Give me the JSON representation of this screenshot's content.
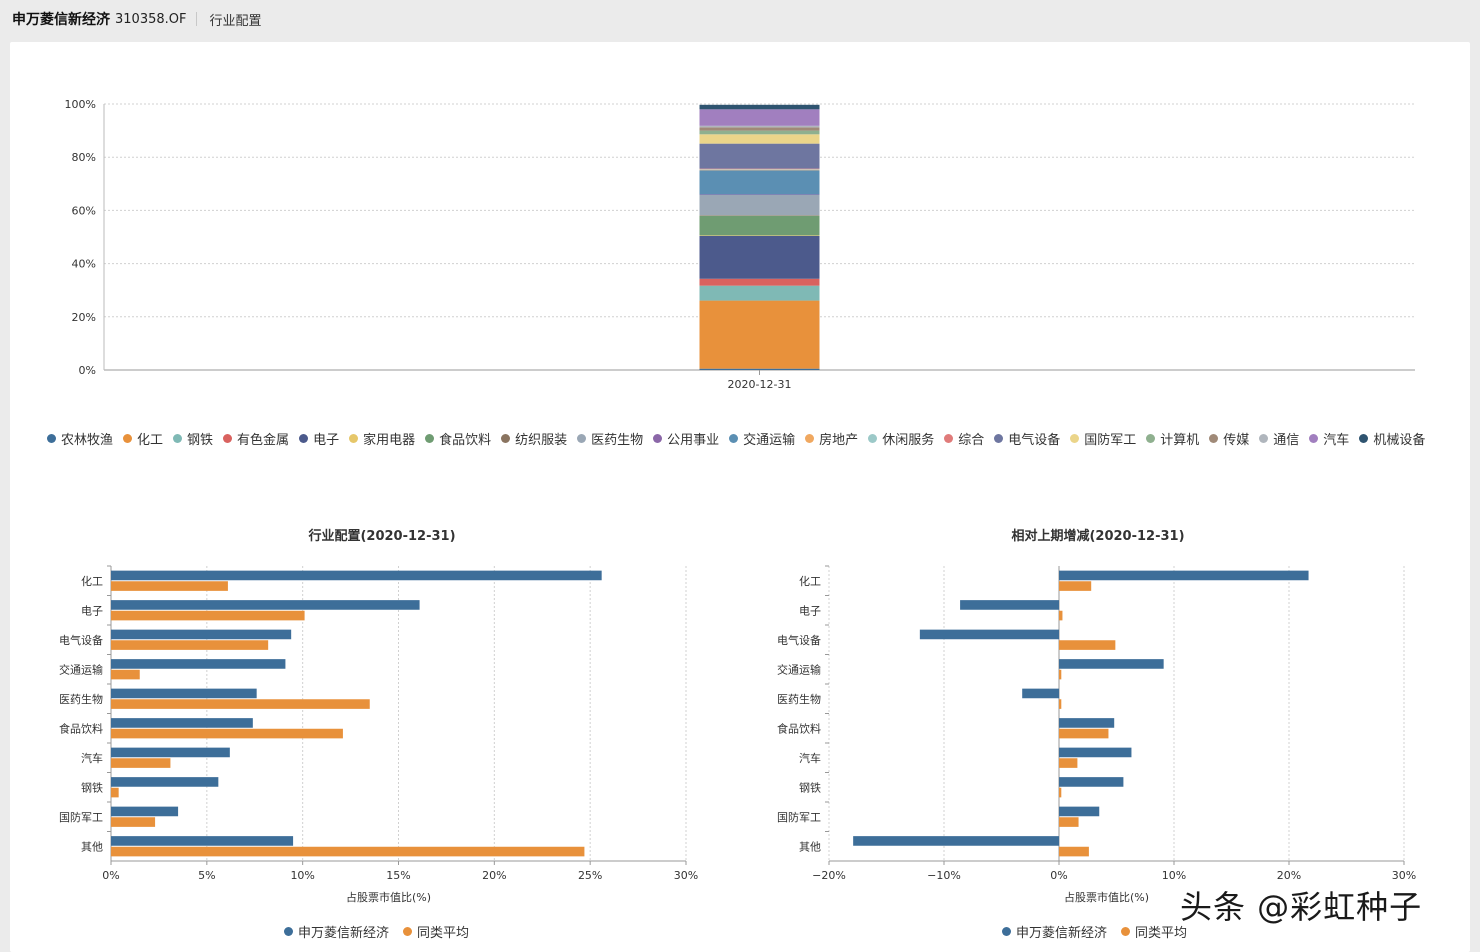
{
  "header": {
    "fund_name": "申万菱信新经济",
    "fund_code": "310358.OF",
    "page_title": "行业配置"
  },
  "colors": {
    "blue": "#3d6e99",
    "orange": "#e8913b"
  },
  "chart_data": [
    {
      "type": "bar",
      "stacked": true,
      "title": "",
      "categories": [
        "2020-12-31"
      ],
      "y_ticks": [
        "0%",
        "20%",
        "40%",
        "60%",
        "80%",
        "100%"
      ],
      "ylim": [
        0,
        100
      ],
      "series": [
        {
          "name": "农林牧渔",
          "color": "#3d6e99",
          "values": [
            0.5
          ]
        },
        {
          "name": "化工",
          "color": "#e8913b",
          "values": [
            25.6
          ]
        },
        {
          "name": "钢铁",
          "color": "#7fb9b5",
          "values": [
            5.6
          ]
        },
        {
          "name": "有色金属",
          "color": "#d9625f",
          "values": [
            2.6
          ]
        },
        {
          "name": "电子",
          "color": "#4c5a8c",
          "values": [
            16.1
          ]
        },
        {
          "name": "家用电器",
          "color": "#e6c76a",
          "values": [
            0.2
          ]
        },
        {
          "name": "食品饮料",
          "color": "#6f9c72",
          "values": [
            7.4
          ]
        },
        {
          "name": "纺织服装",
          "color": "#8a7460",
          "values": [
            0.2
          ]
        },
        {
          "name": "医药生物",
          "color": "#9aa7b5",
          "values": [
            7.6
          ]
        },
        {
          "name": "公用事业",
          "color": "#8b67a8",
          "values": [
            0.2
          ]
        },
        {
          "name": "交通运输",
          "color": "#5b8fb3",
          "values": [
            9.1
          ]
        },
        {
          "name": "房地产",
          "color": "#f0a860",
          "values": [
            0.2
          ]
        },
        {
          "name": "休闲服务",
          "color": "#9cc9c8",
          "values": [
            0.2
          ]
        },
        {
          "name": "综合",
          "color": "#e07b7a",
          "values": [
            0.2
          ]
        },
        {
          "name": "电气设备",
          "color": "#6e76a0",
          "values": [
            9.4
          ]
        },
        {
          "name": "国防军工",
          "color": "#ebd58a",
          "values": [
            3.5
          ]
        },
        {
          "name": "计算机",
          "color": "#8fb08f",
          "values": [
            1.4
          ]
        },
        {
          "name": "传媒",
          "color": "#a08a78",
          "values": [
            1.2
          ]
        },
        {
          "name": "通信",
          "color": "#b0b6bd",
          "values": [
            0.6
          ]
        },
        {
          "name": "汽车",
          "color": "#a17fbf",
          "values": [
            6.2
          ]
        },
        {
          "name": "机械设备",
          "color": "#2f5470",
          "values": [
            1.7
          ]
        }
      ]
    },
    {
      "type": "bar",
      "orientation": "horizontal",
      "title": "行业配置(2020-12-31)",
      "xlabel": "占股票市值比(%)",
      "xlim": [
        0,
        30
      ],
      "x_ticks": [
        "0%",
        "5%",
        "10%",
        "15%",
        "20%",
        "25%",
        "30%"
      ],
      "categories": [
        "化工",
        "电子",
        "电气设备",
        "交通运输",
        "医药生物",
        "食品饮料",
        "汽车",
        "钢铁",
        "国防军工",
        "其他"
      ],
      "series": [
        {
          "name": "申万菱信新经济",
          "values": [
            25.6,
            16.1,
            9.4,
            9.1,
            7.6,
            7.4,
            6.2,
            5.6,
            3.5,
            9.5
          ]
        },
        {
          "name": "同类平均",
          "values": [
            6.1,
            10.1,
            8.2,
            1.5,
            13.5,
            12.1,
            3.1,
            0.4,
            2.3,
            24.7
          ]
        }
      ]
    },
    {
      "type": "bar",
      "orientation": "horizontal",
      "title": "相对上期增减(2020-12-31)",
      "xlabel": "占股票市值比(%)",
      "xlim": [
        -20,
        30
      ],
      "x_ticks": [
        "−20%",
        "−10%",
        "0%",
        "10%",
        "20%",
        "30%"
      ],
      "categories": [
        "化工",
        "电子",
        "电气设备",
        "交通运输",
        "医药生物",
        "食品饮料",
        "汽车",
        "钢铁",
        "国防军工",
        "其他"
      ],
      "series": [
        {
          "name": "申万菱信新经济",
          "values": [
            21.7,
            -8.6,
            -12.1,
            9.1,
            -3.2,
            4.8,
            6.3,
            5.6,
            3.5,
            -17.9
          ]
        },
        {
          "name": "同类平均",
          "values": [
            2.8,
            0.3,
            4.9,
            0.2,
            0.2,
            4.3,
            1.6,
            0.2,
            1.7,
            2.6
          ]
        }
      ]
    }
  ],
  "watermark": "头条 @彩虹种子"
}
